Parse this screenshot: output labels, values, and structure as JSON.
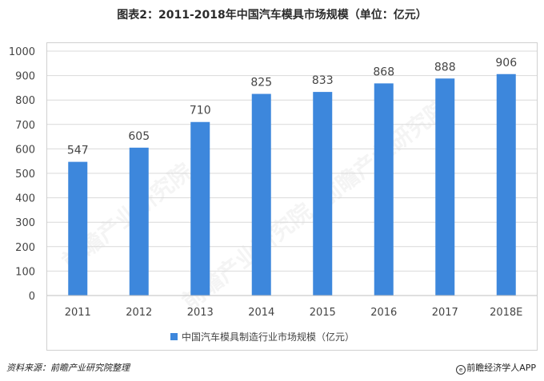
{
  "title": "图表2：2011-2018年中国汽车模具市场规模（单位：亿元）",
  "footer": {
    "source": "资料来源：前瞻产业研究院整理",
    "brand_mark": "e",
    "brand": "前瞻经济学人APP"
  },
  "watermark": "前瞻产业研究院",
  "chart_data": {
    "type": "bar",
    "categories": [
      "2011",
      "2012",
      "2013",
      "2014",
      "2015",
      "2016",
      "2017",
      "2018E"
    ],
    "series": [
      {
        "name": "中国汽车模具制造行业市场规模（亿元）",
        "values": [
          547,
          605,
          710,
          825,
          833,
          868,
          888,
          906
        ]
      }
    ],
    "ylim": [
      0,
      1000
    ],
    "yticks": [
      0,
      100,
      200,
      300,
      400,
      500,
      600,
      700,
      800,
      900,
      1000
    ],
    "grid": true,
    "legend_position": "bottom",
    "bar_color": "#3d87dc",
    "grid_color": "#d9d9d9"
  }
}
